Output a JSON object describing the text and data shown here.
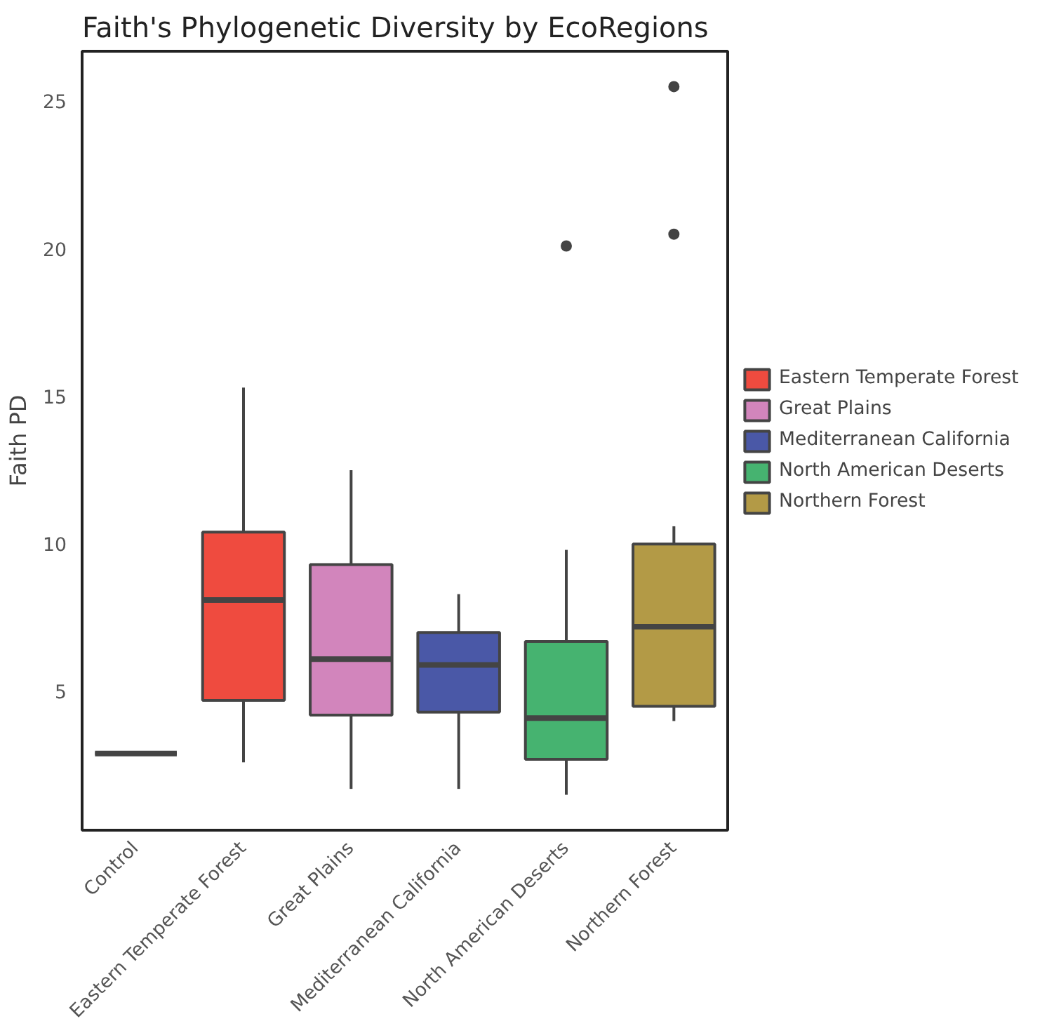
{
  "chart_data": {
    "type": "box",
    "title": "Faith's Phylogenetic Diversity by EcoRegions",
    "ylabel": "Faith PD",
    "categories": [
      "Control",
      "Eastern Temperate Forest",
      "Great Plains",
      "Mediterranean California",
      "North American Deserts",
      "Northern Forest"
    ],
    "series": [
      {
        "boxes": [
          {
            "low": 2.9,
            "q1": 2.9,
            "median": 2.9,
            "q3": 2.9,
            "high": 2.9
          },
          null,
          null,
          null,
          null,
          null
        ]
      },
      {
        "name": "Eastern Temperate Forest",
        "color": "#ef4b3f",
        "boxes": [
          null,
          {
            "low": 2.6,
            "q1": 4.7,
            "median": 8.1,
            "q3": 10.4,
            "high": 15.3
          },
          null,
          null,
          null,
          null
        ]
      },
      {
        "name": "Great Plains",
        "color": "#d285bc",
        "boxes": [
          null,
          null,
          {
            "low": 1.7,
            "q1": 4.2,
            "median": 6.1,
            "q3": 9.3,
            "high": 12.5
          },
          null,
          null,
          null
        ]
      },
      {
        "name": "Mediterranean California",
        "color": "#4a58a7",
        "boxes": [
          null,
          null,
          null,
          {
            "low": 1.7,
            "q1": 4.3,
            "median": 5.9,
            "q3": 7.0,
            "high": 8.3
          },
          null,
          null
        ]
      },
      {
        "name": "North American Deserts",
        "color": "#46b370",
        "boxes": [
          null,
          null,
          null,
          null,
          {
            "low": 1.5,
            "q1": 2.7,
            "median": 4.1,
            "q3": 6.7,
            "high": 9.8,
            "outliers": [
              20.1
            ]
          },
          null
        ]
      },
      {
        "name": "Northern Forest",
        "color": "#b39a46",
        "boxes": [
          null,
          null,
          null,
          null,
          null,
          {
            "low": 4.0,
            "q1": 4.5,
            "median": 7.2,
            "q3": 10.0,
            "high": 10.6,
            "outliers": [
              20.5,
              25.5
            ]
          }
        ]
      }
    ],
    "ylim": [
      0.3,
      26.7
    ],
    "yticks": [
      5,
      10,
      15,
      20,
      25
    ],
    "grid": false,
    "legend": "right"
  }
}
